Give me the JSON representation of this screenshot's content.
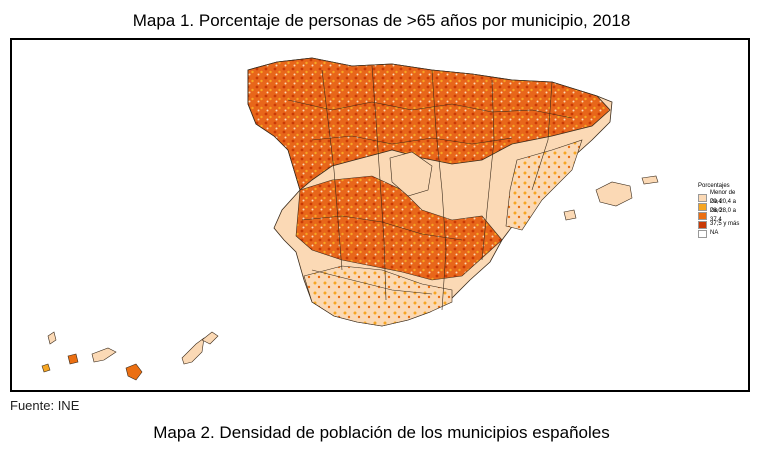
{
  "title_top": "Mapa 1. Porcentaje de personas de >65 años por municipio, 2018",
  "source": "Fuente: INE",
  "title_bottom": "Mapa 2. Densidad de población de los municipios españoles",
  "legend": {
    "title": "Porcentajes",
    "items": [
      {
        "label": "Menor de 20,4",
        "color": "#fbd9b5"
      },
      {
        "label": "De 20,4 a 28,0",
        "color": "#f6a623"
      },
      {
        "label": "De 28,0 a 37,4",
        "color": "#eb6f12"
      },
      {
        "label": "37,5 y más",
        "color": "#c93a06"
      },
      {
        "label": "NA",
        "color": "#ffffff"
      }
    ]
  },
  "colors": {
    "low": "#fbd9b5",
    "mid_low": "#f6a623",
    "mid_high": "#eb6f12",
    "high": "#c93a06",
    "border": "#3a2a1a"
  }
}
